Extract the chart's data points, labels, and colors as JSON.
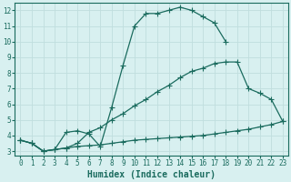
{
  "line1_x": [
    0,
    1,
    2,
    3,
    4,
    5,
    6,
    7,
    8,
    9,
    10,
    11,
    12,
    13,
    14,
    15,
    16,
    17,
    18
  ],
  "line1_y": [
    3.7,
    3.5,
    3.0,
    3.1,
    4.2,
    4.3,
    4.1,
    3.3,
    5.8,
    8.5,
    11.0,
    11.8,
    11.8,
    12.0,
    12.2,
    12.0,
    11.6,
    11.2,
    10.0
  ],
  "line2_x": [
    0,
    1,
    2,
    3,
    4,
    5,
    6,
    7,
    8,
    9,
    10,
    11,
    12,
    13,
    14,
    15,
    16,
    17,
    18,
    19,
    20,
    21,
    22,
    23
  ],
  "line2_y": [
    3.7,
    3.5,
    3.0,
    3.1,
    3.2,
    3.5,
    4.2,
    4.5,
    5.0,
    5.4,
    5.9,
    6.3,
    6.8,
    7.2,
    7.7,
    8.1,
    8.3,
    8.6,
    8.7,
    8.7,
    7.0,
    6.7,
    6.3,
    4.9
  ],
  "line3_x": [
    0,
    1,
    2,
    3,
    4,
    5,
    6,
    7,
    8,
    9,
    10,
    11,
    12,
    13,
    14,
    15,
    16,
    17,
    18,
    19,
    20,
    21,
    22,
    23
  ],
  "line3_y": [
    3.7,
    3.5,
    3.0,
    3.1,
    3.2,
    3.3,
    3.35,
    3.4,
    3.5,
    3.6,
    3.7,
    3.75,
    3.8,
    3.85,
    3.9,
    3.95,
    4.0,
    4.1,
    4.2,
    4.3,
    4.4,
    4.55,
    4.7,
    4.9
  ],
  "color": "#1a6b5e",
  "bg_color": "#d8f0f0",
  "grid_color": "#c0dede",
  "xlabel": "Humidex (Indice chaleur)",
  "xlim": [
    -0.5,
    23.5
  ],
  "ylim": [
    2.7,
    12.5
  ],
  "xticks": [
    0,
    1,
    2,
    3,
    4,
    5,
    6,
    7,
    8,
    9,
    10,
    11,
    12,
    13,
    14,
    15,
    16,
    17,
    18,
    19,
    20,
    21,
    22,
    23
  ],
  "yticks": [
    3,
    4,
    5,
    6,
    7,
    8,
    9,
    10,
    11,
    12
  ],
  "marker": "+",
  "markersize": 4,
  "linewidth": 0.9,
  "xlabel_fontsize": 7,
  "tick_fontsize": 5.5
}
